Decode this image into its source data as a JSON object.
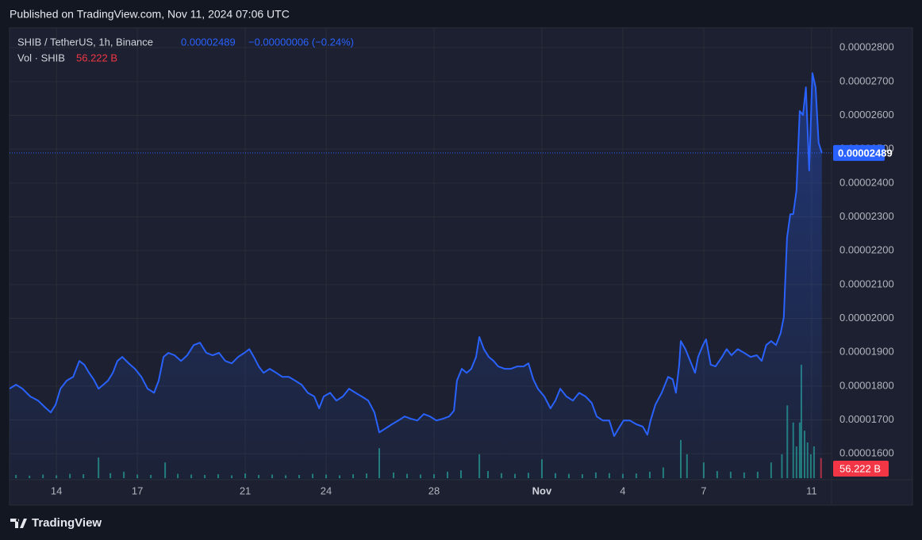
{
  "header": "Published on TradingView.com, Nov 11, 2024 07:06 UTC",
  "footer": "TradingView",
  "chart_data": {
    "type": "line",
    "title": "SHIB / TetherUS, 1h, Binance",
    "change": "−0.00000006 (−0.24%)",
    "series": [
      {
        "name": "SHIB / TetherUS",
        "color": "#2962ff",
        "x": [
          12.26,
          12.5,
          12.74,
          13.03,
          13.32,
          13.62,
          13.79,
          13.97,
          14.15,
          14.38,
          14.62,
          14.85,
          15.03,
          15.21,
          15.38,
          15.56,
          15.74,
          15.91,
          16.09,
          16.26,
          16.44,
          16.68,
          16.91,
          17.15,
          17.38,
          17.62,
          17.79,
          17.97,
          18.15,
          18.38,
          18.62,
          18.85,
          19.09,
          19.32,
          19.56,
          19.79,
          20.03,
          20.26,
          20.5,
          20.74,
          20.97,
          21.15,
          21.32,
          21.5,
          21.68,
          21.91,
          22.15,
          22.38,
          22.62,
          22.85,
          23.09,
          23.32,
          23.56,
          23.74,
          23.91,
          24.15,
          24.38,
          24.62,
          24.85,
          25.09,
          25.32,
          25.56,
          25.79,
          25.97,
          26.21,
          26.44,
          26.68,
          26.91,
          27.15,
          27.38,
          27.62,
          27.85,
          28.09,
          28.32,
          28.56,
          28.74,
          28.85,
          29.03,
          29.21,
          29.38,
          29.56,
          29.68,
          29.85,
          30.03,
          30.21,
          30.38,
          30.62,
          30.85,
          31.09,
          31.32,
          31.5,
          31.68,
          31.85,
          32.09,
          32.32,
          32.5,
          32.68,
          32.91,
          33.15,
          33.38,
          33.62,
          33.85,
          34.03,
          34.26,
          34.5,
          34.68,
          34.85,
          35.03,
          35.26,
          35.5,
          35.74,
          35.91,
          36.03,
          36.21,
          36.44,
          36.68,
          36.85,
          36.97,
          37.09,
          37.15,
          37.32,
          37.5,
          37.68,
          37.79,
          37.97,
          38.09,
          38.26,
          38.44,
          38.68,
          38.85,
          39.03,
          39.26,
          39.5,
          39.74,
          39.97,
          40.15,
          40.32,
          40.5,
          40.68,
          40.85,
          40.97,
          41.09,
          41.21,
          41.32,
          41.44,
          41.56,
          41.68,
          41.79,
          41.91,
          42.03,
          42.15,
          42.26,
          42.38
        ],
        "values": [
          1.792e-05,
          1.804e-05,
          1.792e-05,
          1.769e-05,
          1.757e-05,
          1.734e-05,
          1.722e-05,
          1.745e-05,
          1.792e-05,
          1.816e-05,
          1.827e-05,
          1.874e-05,
          1.863e-05,
          1.839e-05,
          1.82e-05,
          1.792e-05,
          1.804e-05,
          1.816e-05,
          1.839e-05,
          1.874e-05,
          1.886e-05,
          1.867e-05,
          1.851e-05,
          1.827e-05,
          1.792e-05,
          1.78e-05,
          1.816e-05,
          1.886e-05,
          1.898e-05,
          1.891e-05,
          1.874e-05,
          1.891e-05,
          1.921e-05,
          1.928e-05,
          1.898e-05,
          1.891e-05,
          1.898e-05,
          1.874e-05,
          1.867e-05,
          1.886e-05,
          1.898e-05,
          1.909e-05,
          1.886e-05,
          1.858e-05,
          1.839e-05,
          1.851e-05,
          1.839e-05,
          1.827e-05,
          1.827e-05,
          1.816e-05,
          1.804e-05,
          1.78e-05,
          1.769e-05,
          1.734e-05,
          1.769e-05,
          1.78e-05,
          1.757e-05,
          1.769e-05,
          1.792e-05,
          1.78e-05,
          1.769e-05,
          1.757e-05,
          1.722e-05,
          1.663e-05,
          1.675e-05,
          1.687e-05,
          1.698e-05,
          1.71e-05,
          1.703e-05,
          1.698e-05,
          1.717e-05,
          1.71e-05,
          1.698e-05,
          1.703e-05,
          1.71e-05,
          1.727e-05,
          1.816e-05,
          1.851e-05,
          1.839e-05,
          1.851e-05,
          1.886e-05,
          1.945e-05,
          1.909e-05,
          1.886e-05,
          1.874e-05,
          1.858e-05,
          1.851e-05,
          1.851e-05,
          1.858e-05,
          1.858e-05,
          1.867e-05,
          1.82e-05,
          1.792e-05,
          1.769e-05,
          1.734e-05,
          1.757e-05,
          1.792e-05,
          1.769e-05,
          1.757e-05,
          1.78e-05,
          1.769e-05,
          1.75e-05,
          1.71e-05,
          1.698e-05,
          1.698e-05,
          1.652e-05,
          1.675e-05,
          1.698e-05,
          1.698e-05,
          1.687e-05,
          1.68e-05,
          1.656e-05,
          1.698e-05,
          1.745e-05,
          1.78e-05,
          1.827e-05,
          1.82e-05,
          1.78e-05,
          1.863e-05,
          1.933e-05,
          1.909e-05,
          1.874e-05,
          1.839e-05,
          1.886e-05,
          1.921e-05,
          1.938e-05,
          1.863e-05,
          1.858e-05,
          1.886e-05,
          1.909e-05,
          1.891e-05,
          1.909e-05,
          1.898e-05,
          1.886e-05,
          1.891e-05,
          1.874e-05,
          1.921e-05,
          1.933e-05,
          1.921e-05,
          1.956e-05,
          2.003e-05,
          2.238e-05,
          2.308e-05,
          2.308e-05,
          2.378e-05,
          2.613e-05,
          2.601e-05,
          2.683e-05,
          2.437e-05,
          2.725e-05,
          2.683e-05,
          2.519e-05,
          2.489e-05
        ],
        "value_labels": {
          "152": "0.00002489"
        }
      }
    ],
    "volume": {
      "name": "Vol · SHIB",
      "color": "#26a69a",
      "last_color": "#f23645",
      "x": [
        12.5,
        13.0,
        13.5,
        14.0,
        14.5,
        15.0,
        15.56,
        16.0,
        16.5,
        17.0,
        17.5,
        18.03,
        18.5,
        19.0,
        19.5,
        20.0,
        20.5,
        21.0,
        21.5,
        22.0,
        22.5,
        23.0,
        23.5,
        24.0,
        24.5,
        25.0,
        25.5,
        25.97,
        26.5,
        27.0,
        27.5,
        28.0,
        28.5,
        29.0,
        29.68,
        30.0,
        30.5,
        31.0,
        31.5,
        32.0,
        32.5,
        33.0,
        33.5,
        34.0,
        34.5,
        35.0,
        35.5,
        36.0,
        36.5,
        37.15,
        37.38,
        38.0,
        38.5,
        39.0,
        39.5,
        40.0,
        40.5,
        40.9,
        41.1,
        41.32,
        41.44,
        41.56,
        41.62,
        41.74,
        41.85,
        41.97,
        42.09,
        42.35
      ],
      "values": [
        9,
        7,
        10,
        8,
        12,
        11,
        58,
        14,
        18,
        10,
        9,
        44,
        12,
        10,
        9,
        11,
        8,
        13,
        9,
        10,
        8,
        9,
        12,
        10,
        8,
        11,
        13,
        84,
        16,
        12,
        10,
        11,
        18,
        22,
        67,
        20,
        14,
        12,
        15,
        53,
        14,
        12,
        11,
        16,
        14,
        12,
        13,
        18,
        30,
        107,
        67,
        44,
        20,
        18,
        16,
        18,
        44,
        67,
        204,
        156,
        89,
        156,
        318,
        133,
        100,
        67,
        89,
        56.222
      ],
      "value_labels": {
        "67": "56.222 B"
      },
      "ylim": [
        0,
        340
      ]
    },
    "xlim": [
      12.26,
      42.74
    ],
    "xticks": [
      14,
      17,
      21,
      24,
      28,
      {
        "value": 32,
        "label": "Nov"
      },
      {
        "value": 35,
        "label": "4"
      },
      {
        "value": 38,
        "label": "7"
      },
      {
        "value": 42,
        "label": "11"
      }
    ],
    "ylim": [
      1.523e-05,
      2.859e-05
    ],
    "yticks": [
      {
        "value": 1.6e-05,
        "label": "0.00001600"
      },
      {
        "value": 1.7e-05,
        "label": "0.00001700"
      },
      {
        "value": 1.8e-05,
        "label": "0.00001800"
      },
      {
        "value": 1.9e-05,
        "label": "0.00001900"
      },
      {
        "value": 2e-05,
        "label": "0.00002000"
      },
      {
        "value": 2.1e-05,
        "label": "0.00002100"
      },
      {
        "value": 2.2e-05,
        "label": "0.00002200"
      },
      {
        "value": 2.3e-05,
        "label": "0.00002300"
      },
      {
        "value": 2.4e-05,
        "label": "0.00002400"
      },
      {
        "value": 2.5e-05,
        "label": "0.00002500"
      },
      {
        "value": 2.6e-05,
        "label": "0.00002600"
      },
      {
        "value": 2.7e-05,
        "label": "0.00002700"
      },
      {
        "value": 2.8e-05,
        "label": "0.00002800"
      }
    ],
    "grid": true
  }
}
